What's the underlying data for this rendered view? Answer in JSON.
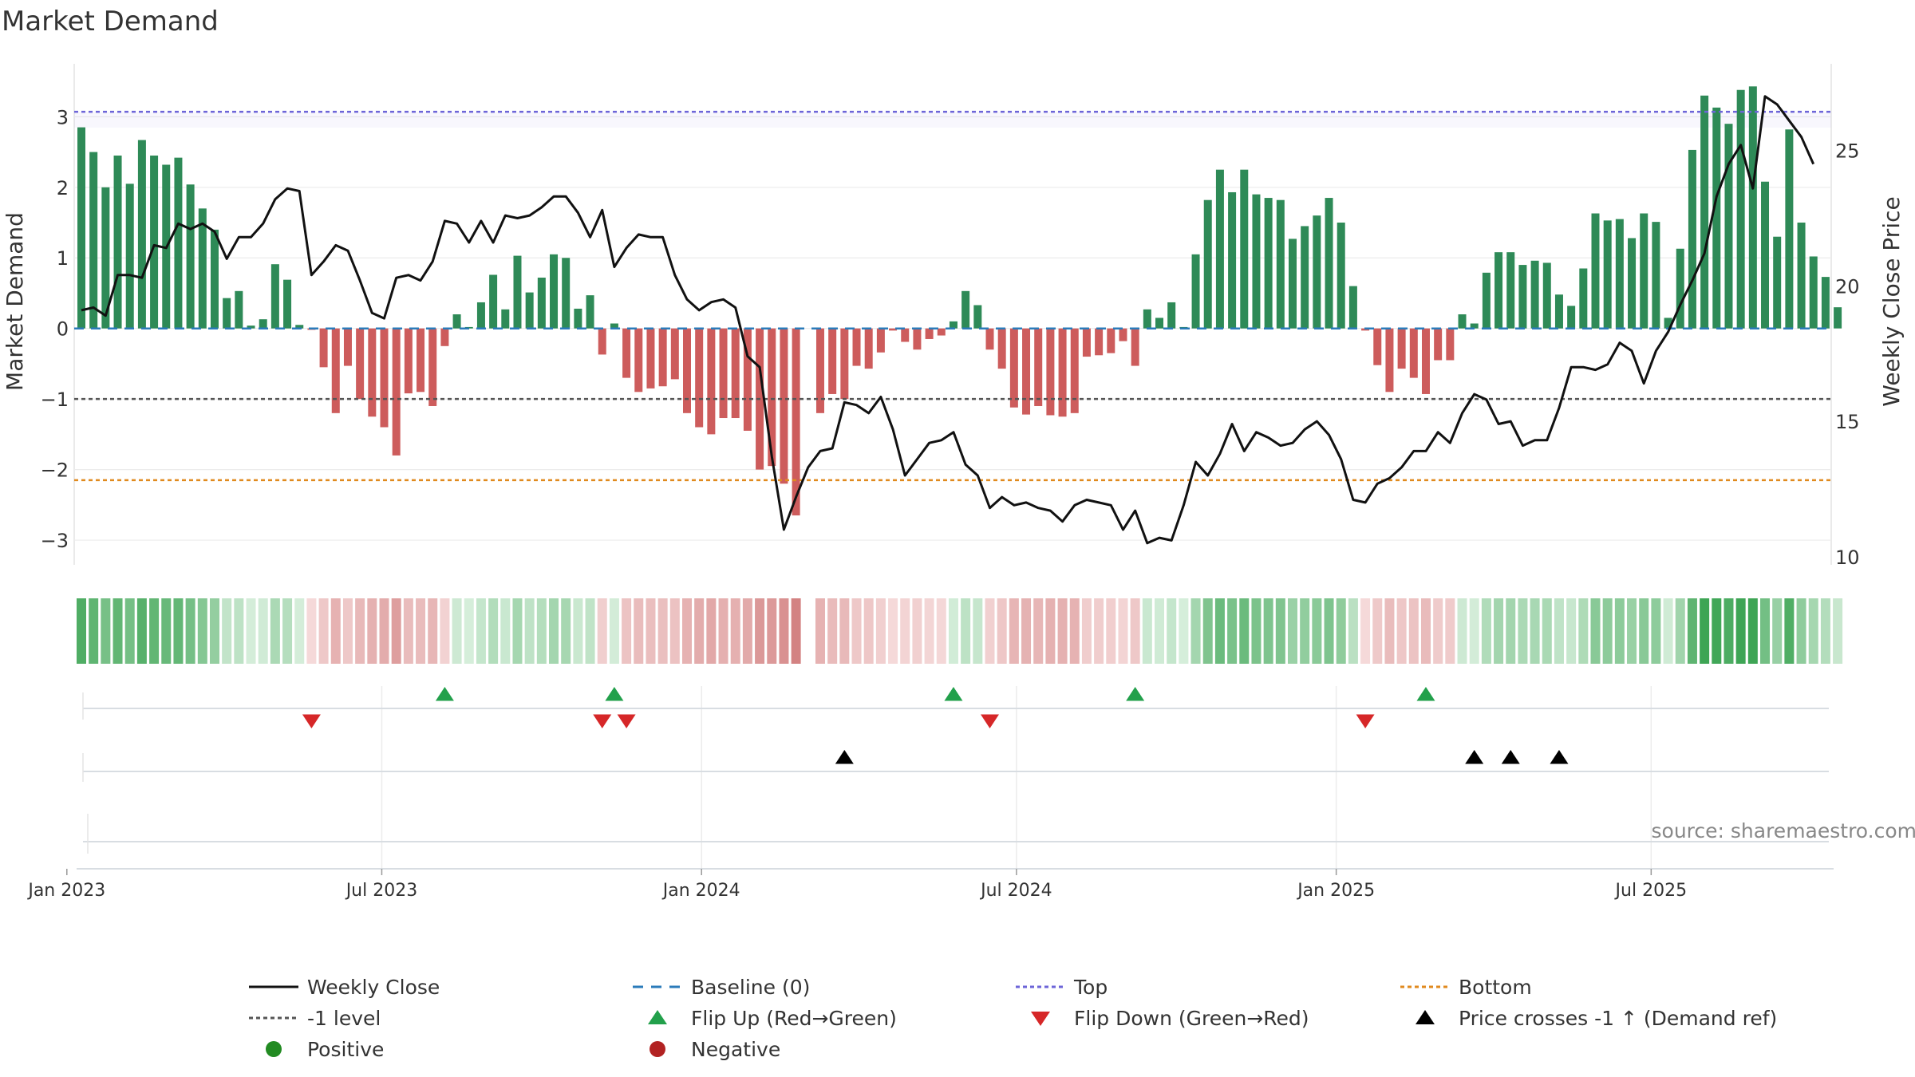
{
  "chart_data": {
    "type": "bar",
    "title": "Market Demand",
    "ylabel_left": "Market Demand",
    "ylabel_right": "Weekly Close Price",
    "ylim_left": [
      -3.35,
      3.75
    ],
    "ylim_right": [
      9.7,
      28.2
    ],
    "left_ticks": [
      3,
      2,
      1,
      0,
      -1,
      -2,
      -3
    ],
    "left_tick_labels": [
      "3",
      "2",
      "1",
      "0",
      "−1",
      "−2",
      "−3"
    ],
    "right_ticks": [
      25,
      20,
      15,
      10
    ],
    "right_tick_labels": [
      "25",
      "20",
      "15",
      "10"
    ],
    "x_ticks": [
      {
        "label": "Jan 2023",
        "index": -1.2
      },
      {
        "label": "Jul 2023",
        "index": 24.8
      },
      {
        "label": "Jan 2024",
        "index": 51.2
      },
      {
        "label": "Jul 2024",
        "index": 77.2
      },
      {
        "label": "Jan 2025",
        "index": 103.6
      },
      {
        "label": "Jul 2025",
        "index": 129.6
      }
    ],
    "levels": {
      "top": 3.07,
      "minus_one": -1.0,
      "bottom": -2.15,
      "baseline": 0
    },
    "demand": [
      2.85,
      2.5,
      2.0,
      2.45,
      2.05,
      2.67,
      2.45,
      2.32,
      2.42,
      2.04,
      1.7,
      1.4,
      0.43,
      0.53,
      0.04,
      0.13,
      0.91,
      0.69,
      0.05,
      -0.02,
      -0.55,
      -1.2,
      -0.53,
      -1.0,
      -1.25,
      -1.4,
      -1.8,
      -0.92,
      -0.9,
      -1.1,
      -0.25,
      0.2,
      0.02,
      0.37,
      0.76,
      0.27,
      1.03,
      0.51,
      0.72,
      1.05,
      1.0,
      0.28,
      0.47,
      -0.37,
      0.07,
      -0.7,
      -0.9,
      -0.85,
      -0.82,
      -0.72,
      -1.2,
      -1.4,
      -1.5,
      -1.27,
      -1.27,
      -1.45,
      -2.0,
      -1.95,
      -2.2,
      -2.65,
      0,
      -1.2,
      -0.93,
      -1.0,
      -0.53,
      -0.57,
      -0.34,
      -0.03,
      -0.19,
      -0.3,
      -0.15,
      -0.1,
      0.1,
      0.53,
      0.33,
      -0.3,
      -0.57,
      -1.12,
      -1.22,
      -1.1,
      -1.23,
      -1.25,
      -1.2,
      -0.4,
      -0.38,
      -0.35,
      -0.18,
      -0.53,
      0.27,
      0.15,
      0.37,
      0.02,
      1.05,
      1.82,
      2.25,
      1.93,
      2.25,
      1.9,
      1.85,
      1.82,
      1.27,
      1.45,
      1.6,
      1.85,
      1.5,
      0.6,
      -0.03,
      -0.52,
      -0.9,
      -0.57,
      -0.7,
      -0.93,
      -0.45,
      -0.45,
      0.2,
      0.07,
      0.79,
      1.08,
      1.08,
      0.9,
      0.96,
      0.93,
      0.48,
      0.32,
      0.85,
      1.63,
      1.53,
      1.55,
      1.28,
      1.63,
      1.51,
      0.15,
      1.13,
      2.53,
      3.3,
      3.13,
      2.9,
      3.38,
      3.43,
      2.08,
      1.3,
      2.82,
      1.5,
      1.02,
      0.73,
      0.3
    ],
    "price": [
      19.1,
      19.2,
      18.9,
      20.4,
      20.4,
      20.3,
      21.5,
      21.4,
      22.3,
      22.1,
      22.3,
      22.0,
      21.0,
      21.8,
      21.8,
      22.3,
      23.2,
      23.6,
      23.5,
      20.4,
      20.9,
      21.5,
      21.3,
      20.2,
      19.0,
      18.8,
      20.3,
      20.4,
      20.2,
      20.9,
      22.4,
      22.3,
      21.6,
      22.4,
      21.6,
      22.6,
      22.5,
      22.6,
      22.9,
      23.3,
      23.3,
      22.7,
      21.8,
      22.8,
      20.7,
      21.4,
      21.9,
      21.8,
      21.8,
      20.4,
      19.5,
      19.1,
      19.4,
      19.5,
      19.2,
      17.4,
      17.0,
      13.7,
      11.0,
      12.2,
      13.3,
      13.9,
      14.0,
      15.7,
      15.6,
      15.3,
      15.9,
      14.7,
      13.0,
      13.6,
      14.2,
      14.3,
      14.6,
      13.4,
      13.0,
      11.8,
      12.2,
      11.9,
      12.0,
      11.8,
      11.7,
      11.3,
      11.9,
      12.1,
      12.0,
      11.9,
      11.0,
      11.7,
      10.5,
      10.7,
      10.6,
      11.9,
      13.5,
      13.0,
      13.8,
      14.9,
      13.9,
      14.6,
      14.4,
      14.1,
      14.2,
      14.7,
      15.0,
      14.5,
      13.6,
      12.1,
      12.0,
      12.7,
      12.9,
      13.3,
      13.9,
      13.9,
      14.6,
      14.2,
      15.3,
      16.0,
      15.8,
      14.9,
      15.0,
      14.1,
      14.3,
      14.3,
      15.5,
      17.0,
      17.0,
      16.9,
      17.1,
      17.9,
      17.6,
      16.4,
      17.6,
      18.3,
      19.3,
      20.2,
      21.2,
      23.3,
      24.5,
      25.2,
      23.6,
      27.0,
      26.7,
      26.1,
      25.5,
      24.5
    ],
    "flip_up_idx": [
      30,
      44,
      72,
      87,
      111
    ],
    "flip_down_idx": [
      19,
      43,
      45,
      75,
      106
    ],
    "price_cross_idx": [
      63,
      115,
      118,
      122
    ],
    "source_text": "source: sharemaestro.com",
    "legend": [
      {
        "label": "Weekly Close",
        "kind": "solid",
        "color": "#111111"
      },
      {
        "label": "Baseline (0)",
        "kind": "dash",
        "color": "#2b7bba"
      },
      {
        "label": "Top",
        "kind": "dot",
        "color": "#6d65d8"
      },
      {
        "label": "Bottom",
        "kind": "dot",
        "color": "#e08a1e"
      },
      {
        "label": "-1 level",
        "kind": "dot",
        "color": "#555555"
      },
      {
        "label": "Flip Up (Red→Green)",
        "kind": "tri-up",
        "color": "#22a04b"
      },
      {
        "label": "Flip Down (Green→Red)",
        "kind": "tri-down",
        "color": "#d62728"
      },
      {
        "label": "Price crosses -1 ↑ (Demand ref)",
        "kind": "tri-up",
        "color": "#000000"
      },
      {
        "label": "Positive",
        "kind": "circle",
        "color": "#228b22"
      },
      {
        "label": "Negative",
        "kind": "circle",
        "color": "#b22222"
      }
    ],
    "colors": {
      "positive": "#2e8a57",
      "negative": "#cd5c5c",
      "top": "#6d65d8",
      "bottom": "#e08a1e",
      "minus_one": "#555555",
      "baseline": "#2b7bba",
      "price": "#111111",
      "flip_up": "#22a04b",
      "flip_down": "#d62728",
      "cross": "#000000"
    }
  }
}
